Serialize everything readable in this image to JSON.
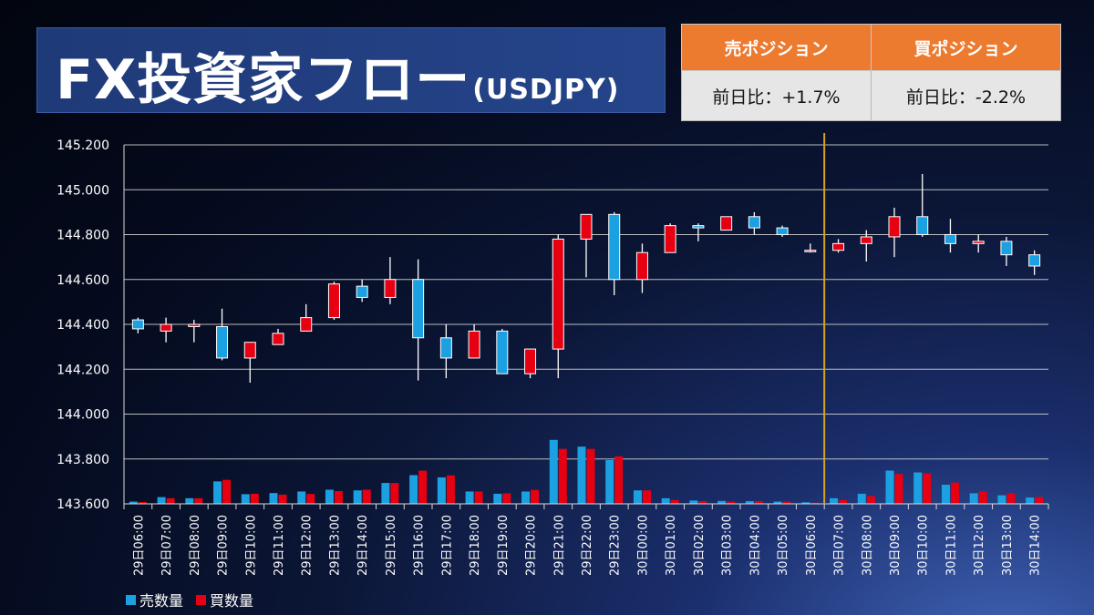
{
  "header": {
    "title": "FX投資家フロー",
    "pair": "(USDJPY)"
  },
  "positions": {
    "sell_header": "売ポジション",
    "buy_header": "買ポジション",
    "sell_change": "前日比：+1.7%",
    "buy_change": "前日比：-2.2%"
  },
  "colors": {
    "sell": "#1ba1e2",
    "buy": "#e60012",
    "header_orange": "#ec7a2f",
    "marker": "#d7a21e"
  },
  "chart_data": {
    "type": "candlestick+bar",
    "ylim": [
      143.6,
      145.2
    ],
    "yticks": [
      "145.200",
      "145.000",
      "144.800",
      "144.600",
      "144.400",
      "144.200",
      "144.000",
      "143.800",
      "143.600"
    ],
    "grid": true,
    "legend_position": "bottom-left",
    "divider_after": "30日06:00",
    "categories": [
      "29日06:00",
      "29日07:00",
      "29日08:00",
      "29日09:00",
      "29日10:00",
      "29日11:00",
      "29日12:00",
      "29日13:00",
      "29日14:00",
      "29日15:00",
      "29日16:00",
      "29日17:00",
      "29日18:00",
      "29日19:00",
      "29日20:00",
      "29日21:00",
      "29日22:00",
      "29日23:00",
      "30日00:00",
      "30日01:00",
      "30日02:00",
      "30日03:00",
      "30日04:00",
      "30日05:00",
      "30日06:00",
      "30日07:00",
      "30日08:00",
      "30日09:00",
      "30日10:00",
      "30日11:00",
      "30日12:00",
      "30日13:00",
      "30日14:00"
    ],
    "candles": [
      {
        "open": 144.42,
        "high": 144.43,
        "low": 144.36,
        "close": 144.38
      },
      {
        "open": 144.37,
        "high": 144.43,
        "low": 144.32,
        "close": 144.4
      },
      {
        "open": 144.39,
        "high": 144.42,
        "low": 144.32,
        "close": 144.4
      },
      {
        "open": 144.39,
        "high": 144.47,
        "low": 144.24,
        "close": 144.25
      },
      {
        "open": 144.25,
        "high": 144.32,
        "low": 144.14,
        "close": 144.32
      },
      {
        "open": 144.31,
        "high": 144.38,
        "low": 144.31,
        "close": 144.36
      },
      {
        "open": 144.37,
        "high": 144.49,
        "low": 144.37,
        "close": 144.43
      },
      {
        "open": 144.43,
        "high": 144.59,
        "low": 144.42,
        "close": 144.58
      },
      {
        "open": 144.57,
        "high": 144.6,
        "low": 144.5,
        "close": 144.52
      },
      {
        "open": 144.52,
        "high": 144.7,
        "low": 144.49,
        "close": 144.6
      },
      {
        "open": 144.6,
        "high": 144.69,
        "low": 144.15,
        "close": 144.34
      },
      {
        "open": 144.34,
        "high": 144.4,
        "low": 144.16,
        "close": 144.25
      },
      {
        "open": 144.25,
        "high": 144.4,
        "low": 144.25,
        "close": 144.37
      },
      {
        "open": 144.37,
        "high": 144.38,
        "low": 144.18,
        "close": 144.18
      },
      {
        "open": 144.18,
        "high": 144.29,
        "low": 144.16,
        "close": 144.29
      },
      {
        "open": 144.29,
        "high": 144.8,
        "low": 144.16,
        "close": 144.78
      },
      {
        "open": 144.78,
        "high": 144.89,
        "low": 144.61,
        "close": 144.89
      },
      {
        "open": 144.89,
        "high": 144.9,
        "low": 144.53,
        "close": 144.6
      },
      {
        "open": 144.6,
        "high": 144.76,
        "low": 144.54,
        "close": 144.72
      },
      {
        "open": 144.72,
        "high": 144.85,
        "low": 144.72,
        "close": 144.84
      },
      {
        "open": 144.84,
        "high": 144.85,
        "low": 144.77,
        "close": 144.83
      },
      {
        "open": 144.82,
        "high": 144.88,
        "low": 144.82,
        "close": 144.88
      },
      {
        "open": 144.88,
        "high": 144.9,
        "low": 144.8,
        "close": 144.83
      },
      {
        "open": 144.83,
        "high": 144.84,
        "low": 144.79,
        "close": 144.8
      },
      {
        "open": 144.73,
        "high": 144.76,
        "low": 144.72,
        "close": 144.73
      },
      {
        "open": 144.73,
        "high": 144.78,
        "low": 144.72,
        "close": 144.76
      },
      {
        "open": 144.76,
        "high": 144.82,
        "low": 144.68,
        "close": 144.79
      },
      {
        "open": 144.79,
        "high": 144.92,
        "low": 144.7,
        "close": 144.88
      },
      {
        "open": 144.88,
        "high": 145.07,
        "low": 144.79,
        "close": 144.8
      },
      {
        "open": 144.8,
        "high": 144.87,
        "low": 144.72,
        "close": 144.76
      },
      {
        "open": 144.76,
        "high": 144.8,
        "low": 144.72,
        "close": 144.77
      },
      {
        "open": 144.77,
        "high": 144.79,
        "low": 144.66,
        "close": 144.71
      },
      {
        "open": 144.71,
        "high": 144.73,
        "low": 144.62,
        "close": 144.66
      }
    ],
    "series": [
      {
        "name": "売数量",
        "values": [
          143.61,
          143.63,
          143.625,
          143.7,
          143.643,
          143.648,
          143.655,
          143.663,
          143.66,
          143.693,
          143.728,
          143.718,
          143.655,
          143.645,
          143.655,
          143.885,
          143.855,
          143.795,
          143.66,
          143.625,
          143.615,
          143.613,
          143.612,
          143.61,
          143.607,
          143.625,
          143.645,
          143.748,
          143.74,
          143.685,
          143.647,
          143.638,
          143.628
        ]
      },
      {
        "name": "買数量",
        "values": [
          143.608,
          143.625,
          143.625,
          143.707,
          143.645,
          143.641,
          143.644,
          143.657,
          143.663,
          143.693,
          143.748,
          143.727,
          143.655,
          143.647,
          143.662,
          143.845,
          143.845,
          143.812,
          143.66,
          143.617,
          143.612,
          143.61,
          143.612,
          143.61,
          143.605,
          143.617,
          143.635,
          143.733,
          143.736,
          143.695,
          143.656,
          143.647,
          143.63
        ]
      }
    ]
  }
}
